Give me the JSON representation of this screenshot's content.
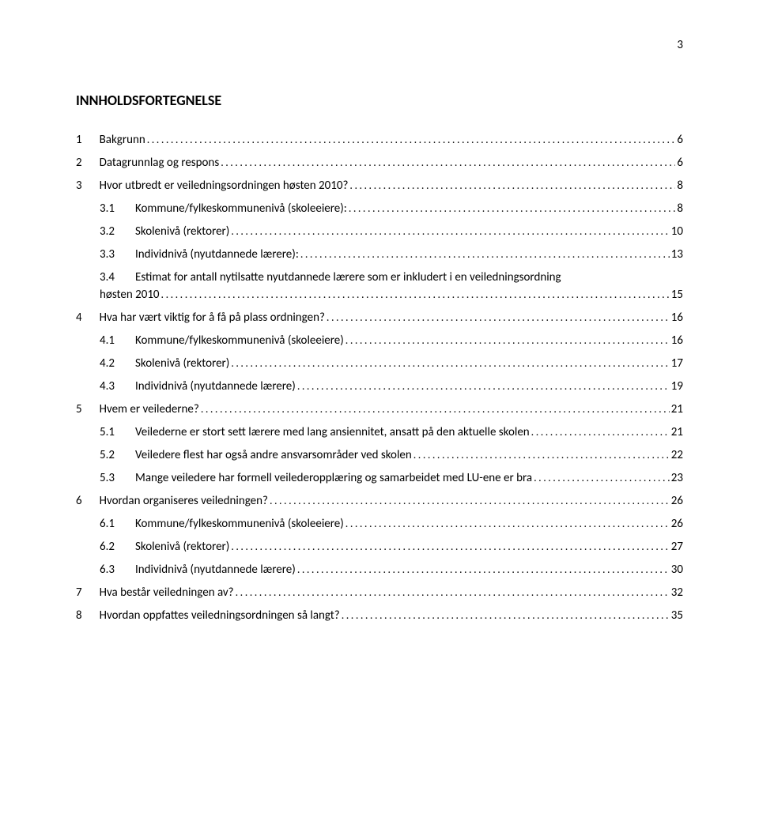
{
  "page_number_top": "3",
  "heading": "INNHOLDSFORTEGNELSE",
  "toc": [
    {
      "num": "1",
      "title": "Bakgrunn",
      "page": "6",
      "indent": 0
    },
    {
      "num": "2",
      "title": "Datagrunnlag og respons",
      "page": "6",
      "indent": 0
    },
    {
      "num": "3",
      "title": "Hvor utbredt er veiledningsordningen høsten 2010?",
      "page": "8",
      "indent": 0
    },
    {
      "num": "3.1",
      "title": "Kommune/fylkeskommunenivå (skoleeiere):",
      "page": "8",
      "indent": 1
    },
    {
      "num": "3.2",
      "title": "Skolenivå (rektorer)",
      "page": "10",
      "indent": 1
    },
    {
      "num": "3.3",
      "title": "Individnivå (nyutdannede lærere):",
      "page": "13",
      "indent": 1
    },
    {
      "num": "3.4",
      "title": "Estimat for antall nytilsatte nyutdannede lærere som er inkludert i en veiledningsordning",
      "title2": "høsten 2010",
      "page": "15",
      "indent": 1
    },
    {
      "num": "4",
      "title": "Hva har vært viktig for å få på plass ordningen?",
      "page": "16",
      "indent": 0
    },
    {
      "num": "4.1",
      "title": "Kommune/fylkeskommunenivå (skoleeiere)",
      "page": "16",
      "indent": 1
    },
    {
      "num": "4.2",
      "title": "Skolenivå (rektorer)",
      "page": "17",
      "indent": 1
    },
    {
      "num": "4.3",
      "title": "Individnivå (nyutdannede lærere)",
      "page": "19",
      "indent": 1
    },
    {
      "num": "5",
      "title": "Hvem er veilederne?",
      "page": "21",
      "indent": 0
    },
    {
      "num": "5.1",
      "title": "Veilederne er stort sett lærere med lang ansiennitet, ansatt på den aktuelle skolen",
      "page": "21",
      "indent": 1
    },
    {
      "num": "5.2",
      "title": "Veiledere flest har også andre ansvarsområder ved skolen",
      "page": "22",
      "indent": 1
    },
    {
      "num": "5.3",
      "title": "Mange veiledere har formell veilederopplæring og samarbeidet med LU-ene er bra",
      "page": "23",
      "indent": 1
    },
    {
      "num": "6",
      "title": "Hvordan organiseres veiledningen?",
      "page": "26",
      "indent": 0
    },
    {
      "num": "6.1",
      "title": "Kommune/fylkeskommunenivå (skoleeiere)",
      "page": "26",
      "indent": 1
    },
    {
      "num": "6.2",
      "title": "Skolenivå (rektorer)",
      "page": "27",
      "indent": 1
    },
    {
      "num": "6.3",
      "title": "Individnivå (nyutdannede lærere)",
      "page": "30",
      "indent": 1
    },
    {
      "num": "7",
      "title": "Hva består veiledningen av?",
      "page": "32",
      "indent": 0
    },
    {
      "num": "8",
      "title": "Hvordan oppfattes veiledningsordningen så langt?",
      "page": "35",
      "indent": 0
    }
  ]
}
